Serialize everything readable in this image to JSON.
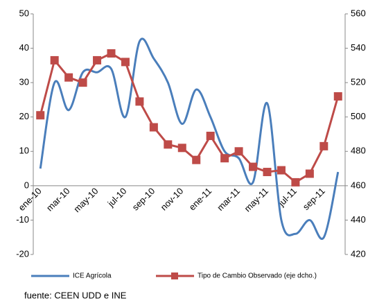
{
  "chart_data": {
    "type": "line",
    "categories": [
      "ene-10",
      null,
      "mar-10",
      null,
      "may-10",
      null,
      "jul-10",
      null,
      "sep-10",
      null,
      "nov-10",
      null,
      "ene-11",
      null,
      "mar-11",
      null,
      "may-11",
      null,
      "jul-11",
      null,
      "sep-11",
      null
    ],
    "series": [
      {
        "name": "ICE Agrícola",
        "color": "#4a7ebb",
        "values": [
          5,
          30,
          22,
          33,
          33,
          34,
          20,
          42,
          37,
          30,
          18,
          28,
          20,
          10,
          8,
          1,
          24,
          -10,
          -14,
          -10,
          -15,
          4
        ]
      },
      {
        "name": "Tipo de Cambio Observado (eje dcho.)",
        "color": "#be4b48",
        "axis": "y2",
        "marker": "square",
        "values": [
          501,
          533,
          523,
          520,
          533,
          537,
          532,
          509,
          494,
          484,
          482,
          475,
          489,
          476,
          480,
          471,
          468,
          469,
          462,
          467,
          483,
          512
        ]
      }
    ],
    "ylim": [
      -20,
      50
    ],
    "yticks": [
      -20,
      -10,
      0,
      10,
      20,
      30,
      40,
      50
    ],
    "y2lim": [
      420,
      560
    ],
    "y2ticks": [
      420,
      440,
      460,
      480,
      500,
      520,
      540,
      560
    ],
    "grid": false,
    "legend": "bottom",
    "note": "fuente: CEEN UDD e INE"
  }
}
